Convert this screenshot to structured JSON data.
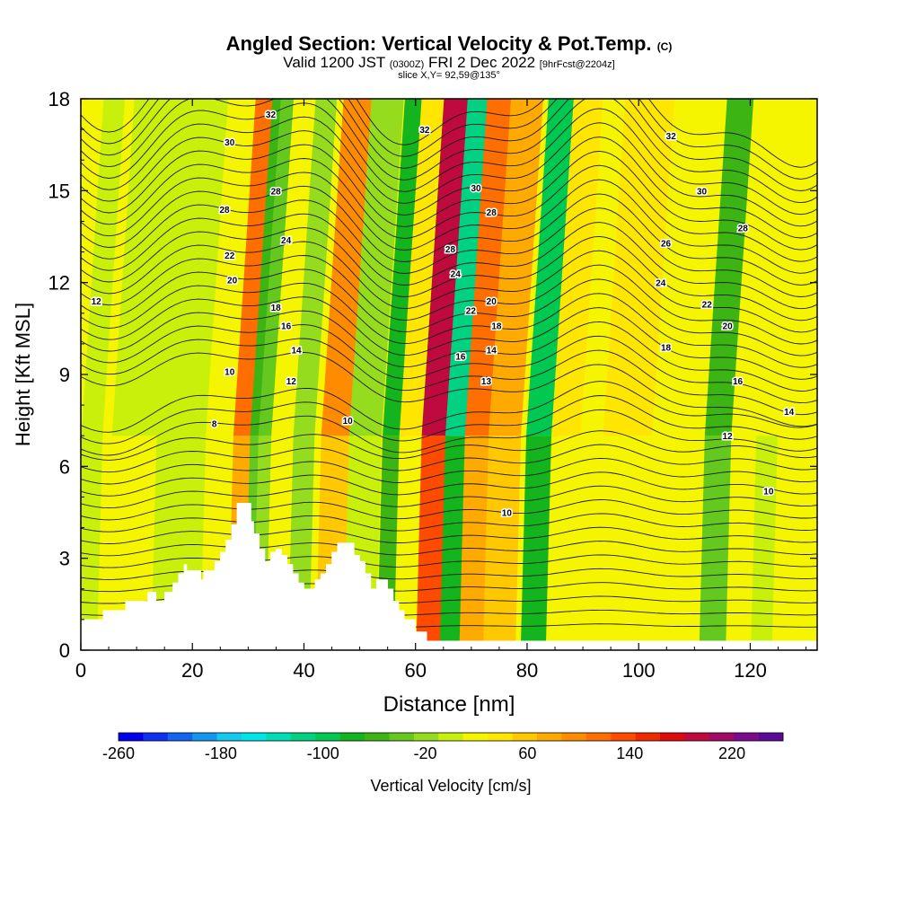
{
  "title": {
    "main": "Angled Section: Vertical Velocity & Pot.Temp.",
    "main_suffix": "(C)",
    "valid_prefix": "Valid 1200 JST",
    "valid_utc": "(0300Z)",
    "valid_date": "FRI 2 Dec 2022",
    "forecast": "[9hrFcst@2204z]",
    "slice": "slice X,Y= 92,59@135°"
  },
  "chart_data": {
    "type": "heatmap",
    "title": "Angled Section: Vertical Velocity & Pot.Temp. (C)",
    "xlabel": "Distance [nm]",
    "ylabel": "Height [Kft MSL]",
    "xlim": [
      0,
      132
    ],
    "ylim": [
      0,
      18
    ],
    "x_ticks": [
      0,
      20,
      40,
      60,
      80,
      100,
      120
    ],
    "y_ticks": [
      0,
      3,
      6,
      9,
      12,
      15,
      18
    ],
    "grid": false,
    "colorbar": {
      "label": "Vertical Velocity [cm/s]",
      "tick_labels": [
        "-260",
        "-180",
        "-100",
        "-20",
        "60",
        "140",
        "220"
      ],
      "tick_values": [
        -260,
        -180,
        -100,
        -20,
        60,
        140,
        220
      ],
      "range": [
        -260,
        260
      ],
      "colors": [
        "#0000ee",
        "#1030f0",
        "#1464f0",
        "#1496f0",
        "#14c8f0",
        "#00e6e6",
        "#00dcb4",
        "#00d282",
        "#00c850",
        "#14b41e",
        "#3cb414",
        "#64c81e",
        "#96dc1e",
        "#c8f00a",
        "#f5f500",
        "#ffe600",
        "#ffc800",
        "#ffaa00",
        "#ff8c00",
        "#ff6e00",
        "#ff4b00",
        "#f02800",
        "#dc0a0a",
        "#be0a3c",
        "#a00a64",
        "#7d0a8c",
        "#5a0a96"
      ]
    },
    "shading_series": [
      {
        "x": 2,
        "w": 2.5
      },
      {
        "x": 10,
        "w": 5,
        "w_low": 20
      },
      {
        "x": 18,
        "w": 5
      },
      {
        "x": 29,
        "w": 110
      },
      {
        "x": 31.5,
        "w": -65
      },
      {
        "x": 33,
        "w": -30
      },
      {
        "x": 37,
        "w": 20
      },
      {
        "x": 40,
        "w": -20
      },
      {
        "x": 46,
        "w": 90
      },
      {
        "x": 51,
        "w": -10
      },
      {
        "x": 56,
        "w": -80
      },
      {
        "x": 59,
        "w": 40
      },
      {
        "x": 63.5,
        "w": 200
      },
      {
        "x": 67.5,
        "w": -120
      },
      {
        "x": 71,
        "w": 120
      },
      {
        "x": 76,
        "w": 70
      },
      {
        "x": 82.5,
        "w": -100
      },
      {
        "x": 87,
        "w": 40
      },
      {
        "x": 92,
        "w": 20
      },
      {
        "x": 96,
        "w": 40
      },
      {
        "x": 100,
        "w": 30
      },
      {
        "x": 108,
        "w": 20
      },
      {
        "x": 114.5,
        "w": -60
      },
      {
        "x": 119,
        "w": 20
      },
      {
        "x": 123,
        "w": 10
      }
    ],
    "theta_contour_labels": [
      {
        "x": 37,
        "y": 17.5,
        "text": "32"
      },
      {
        "x": 67,
        "y": 17.0,
        "text": "32"
      },
      {
        "x": 115,
        "y": 16.8,
        "text": "32"
      },
      {
        "x": 29,
        "y": 16.6,
        "text": "30"
      },
      {
        "x": 77,
        "y": 15.1,
        "text": "30"
      },
      {
        "x": 121,
        "y": 15.0,
        "text": "30"
      },
      {
        "x": 28,
        "y": 14.4,
        "text": "28"
      },
      {
        "x": 38,
        "y": 15.0,
        "text": "28"
      },
      {
        "x": 80,
        "y": 14.3,
        "text": "28"
      },
      {
        "x": 129,
        "y": 13.8,
        "text": "28"
      },
      {
        "x": 40,
        "y": 13.4,
        "text": "24"
      },
      {
        "x": 72,
        "y": 13.1,
        "text": "28"
      },
      {
        "x": 114,
        "y": 13.3,
        "text": "26"
      },
      {
        "x": 29,
        "y": 12.9,
        "text": "22"
      },
      {
        "x": 29.5,
        "y": 12.1,
        "text": "20"
      },
      {
        "x": 73,
        "y": 12.3,
        "text": "24"
      },
      {
        "x": 113,
        "y": 12.0,
        "text": "24"
      },
      {
        "x": 3,
        "y": 11.4,
        "text": "12"
      },
      {
        "x": 38,
        "y": 11.2,
        "text": "18"
      },
      {
        "x": 76,
        "y": 11.1,
        "text": "22"
      },
      {
        "x": 80,
        "y": 11.4,
        "text": "20"
      },
      {
        "x": 122,
        "y": 11.3,
        "text": "22"
      },
      {
        "x": 40,
        "y": 10.6,
        "text": "16"
      },
      {
        "x": 81,
        "y": 10.6,
        "text": "18"
      },
      {
        "x": 126,
        "y": 10.6,
        "text": "20"
      },
      {
        "x": 42,
        "y": 9.8,
        "text": "14"
      },
      {
        "x": 74,
        "y": 9.6,
        "text": "16"
      },
      {
        "x": 80,
        "y": 9.8,
        "text": "14"
      },
      {
        "x": 114,
        "y": 9.9,
        "text": "18"
      },
      {
        "x": 29,
        "y": 9.1,
        "text": "10"
      },
      {
        "x": 41,
        "y": 8.8,
        "text": "12"
      },
      {
        "x": 79,
        "y": 8.8,
        "text": "13"
      },
      {
        "x": 128,
        "y": 8.8,
        "text": "16"
      },
      {
        "x": 138,
        "y": 7.8,
        "text": "14"
      },
      {
        "x": 26,
        "y": 7.4,
        "text": "8"
      },
      {
        "x": 52,
        "y": 7.5,
        "text": "10"
      },
      {
        "x": 126,
        "y": 7.0,
        "text": "12"
      },
      {
        "x": 134,
        "y": 5.2,
        "text": "10"
      },
      {
        "x": 83,
        "y": 4.5,
        "text": "10"
      }
    ],
    "terrain_profile": [
      [
        0,
        1.0
      ],
      [
        4,
        1.0
      ],
      [
        4,
        1.3
      ],
      [
        8,
        1.3
      ],
      [
        8,
        1.6
      ],
      [
        12,
        1.6
      ],
      [
        12,
        1.9
      ],
      [
        13.5,
        1.9
      ],
      [
        13.5,
        1.6
      ],
      [
        15,
        1.6
      ],
      [
        15,
        1.9
      ],
      [
        16.5,
        1.9
      ],
      [
        16.5,
        2.2
      ],
      [
        17.5,
        2.2
      ],
      [
        17.5,
        2.5
      ],
      [
        18.5,
        2.5
      ],
      [
        18.5,
        2.8
      ],
      [
        19,
        2.8
      ],
      [
        19,
        2.6
      ],
      [
        21.5,
        2.6
      ],
      [
        21.5,
        2.3
      ],
      [
        22,
        2.3
      ],
      [
        22,
        2.6
      ],
      [
        24,
        2.6
      ],
      [
        24,
        2.9
      ],
      [
        25,
        2.9
      ],
      [
        25,
        3.2
      ],
      [
        26,
        3.2
      ],
      [
        26,
        3.6
      ],
      [
        27,
        3.6
      ],
      [
        27,
        4.1
      ],
      [
        28,
        4.1
      ],
      [
        28,
        4.8
      ],
      [
        30.5,
        4.8
      ],
      [
        30.5,
        4.2
      ],
      [
        31,
        4.2
      ],
      [
        31,
        3.8
      ],
      [
        32,
        3.8
      ],
      [
        32,
        3.3
      ],
      [
        33,
        3.3
      ],
      [
        33,
        2.9
      ],
      [
        34,
        2.9
      ],
      [
        34,
        3.2
      ],
      [
        35,
        3.2
      ],
      [
        35,
        3.3
      ],
      [
        36,
        3.3
      ],
      [
        36,
        3.1
      ],
      [
        37,
        3.1
      ],
      [
        37,
        2.8
      ],
      [
        38,
        2.8
      ],
      [
        38,
        2.5
      ],
      [
        39,
        2.5
      ],
      [
        39,
        2.2
      ],
      [
        40,
        2.2
      ],
      [
        40,
        2.0
      ],
      [
        42,
        2.0
      ],
      [
        42,
        2.3
      ],
      [
        43,
        2.3
      ],
      [
        43,
        2.5
      ],
      [
        44,
        2.5
      ],
      [
        44,
        2.8
      ],
      [
        45,
        2.8
      ],
      [
        45,
        3.2
      ],
      [
        46,
        3.2
      ],
      [
        46,
        3.5
      ],
      [
        49,
        3.5
      ],
      [
        49,
        3.1
      ],
      [
        50,
        3.1
      ],
      [
        50,
        2.9
      ],
      [
        51,
        2.9
      ],
      [
        51,
        2.5
      ],
      [
        52,
        2.5
      ],
      [
        52,
        2.0
      ],
      [
        53,
        2.0
      ],
      [
        53,
        2.3
      ],
      [
        55,
        2.3
      ],
      [
        55,
        2.0
      ],
      [
        56,
        2.0
      ],
      [
        56,
        1.6
      ],
      [
        57,
        1.6
      ],
      [
        57,
        1.3
      ],
      [
        58,
        1.3
      ],
      [
        58,
        1.0
      ],
      [
        60,
        1.0
      ],
      [
        60,
        0.6
      ],
      [
        62,
        0.6
      ],
      [
        62,
        0.3
      ],
      [
        132,
        0.3
      ]
    ]
  }
}
